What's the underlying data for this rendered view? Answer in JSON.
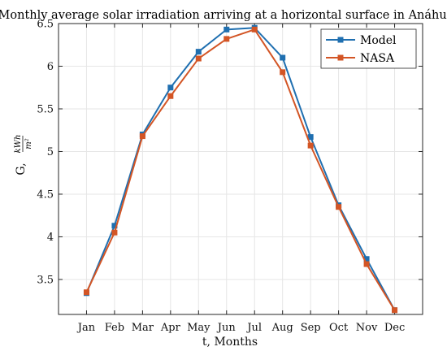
{
  "chart_data": {
    "type": "line",
    "title": "Monthly average solar irradiation arriving at a horizontal surface in Anáhuac",
    "xlabel": "t, Months",
    "ylabel": "G,",
    "ylabel_unit_num": "kWh",
    "ylabel_unit_den": "m²",
    "categories": [
      "Jan",
      "Feb",
      "Mar",
      "Apr",
      "May",
      "Jun",
      "Jul",
      "Aug",
      "Sep",
      "Oct",
      "Nov",
      "Dec"
    ],
    "ylim": [
      3.09,
      6.5
    ],
    "yticks": [
      "3.5",
      "4",
      "4.5",
      "5",
      "5.5",
      "6",
      "6.5"
    ],
    "grid": true,
    "legend_position": "top-right",
    "series": [
      {
        "name": "Model",
        "color": "#1f6fb0",
        "marker": "square",
        "values": [
          3.34,
          4.13,
          5.2,
          5.75,
          6.17,
          6.43,
          6.45,
          6.1,
          5.17,
          4.37,
          3.74,
          3.14
        ]
      },
      {
        "name": "NASA",
        "color": "#d35525",
        "marker": "square",
        "values": [
          3.35,
          4.05,
          5.18,
          5.65,
          6.09,
          6.32,
          6.43,
          5.93,
          5.07,
          4.35,
          3.68,
          3.14
        ]
      }
    ]
  }
}
